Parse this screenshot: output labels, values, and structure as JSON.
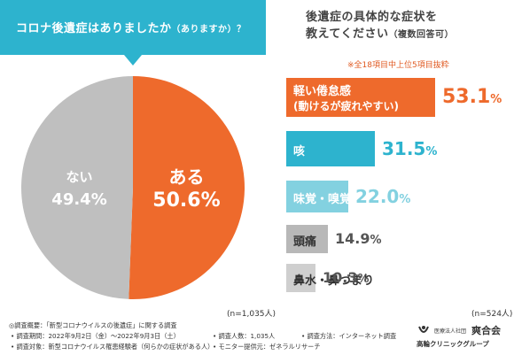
{
  "left_question": {
    "main": "コロナ後遺症はありましたか",
    "sub": "（ありますか）？",
    "sample": "(n=1,035人)"
  },
  "right_question": {
    "line1": "後遺症の具体的な症状を",
    "line2_main": "教えてください",
    "line2_sub": "（複数回答可）",
    "note": "※全18項目中上位5項目抜粋",
    "sample": "(n=524人)"
  },
  "chart_data": [
    {
      "type": "pie",
      "labels": [
        "ある",
        "ない"
      ],
      "values": [
        50.6,
        49.4
      ],
      "value_labels": [
        "50.6%",
        "49.4%"
      ],
      "colors": [
        "#ee6a2c",
        "#bfbfbf"
      ]
    },
    {
      "type": "bar",
      "orientation": "horizontal",
      "categories": [
        "軽い倦怠感(動けるが疲れやすい)",
        "咳",
        "味覚・嗅覚障害",
        "頭痛",
        "鼻水・鼻づまり"
      ],
      "category_lines": [
        [
          "軽い倦怠感",
          "(動けるが疲れやすい)"
        ],
        [
          "咳"
        ],
        [
          "味覚・嗅覚障害"
        ],
        [
          "頭痛"
        ],
        [
          "鼻水・鼻づまり"
        ]
      ],
      "values": [
        53.1,
        31.5,
        22.0,
        14.9,
        10.3
      ],
      "value_labels": [
        "53.1%",
        "31.5%",
        "22.0%",
        "14.9%",
        "10.3%"
      ],
      "colors": [
        "#ee6a2c",
        "#2db3ce",
        "#83d1e0",
        "#b8b8b8",
        "#cfcfcf"
      ],
      "text_colors": [
        "#ee6a2c",
        "#2db3ce",
        "#83d1e0",
        "#555555",
        "#555555"
      ]
    }
  ],
  "footer": {
    "outline": "◎調査概要：「新型コロナウイルスの後遺症」に関する調査",
    "period": "• 調査期間：2022年9月2日（金）〜2022年9月3日（土）",
    "count": "• 調査人数：1,035人",
    "method": "• 調査方法：インターネット調査",
    "target": "• 調査対象：新型コロナウイルス罹患経験者（何らかの症状がある人）",
    "monitor": "• モニター提供元：ゼネラルリサーチ"
  },
  "logo": {
    "corp": "医療法人社団",
    "name": "爽合会",
    "clinic": "高輪クリニックグループ"
  }
}
